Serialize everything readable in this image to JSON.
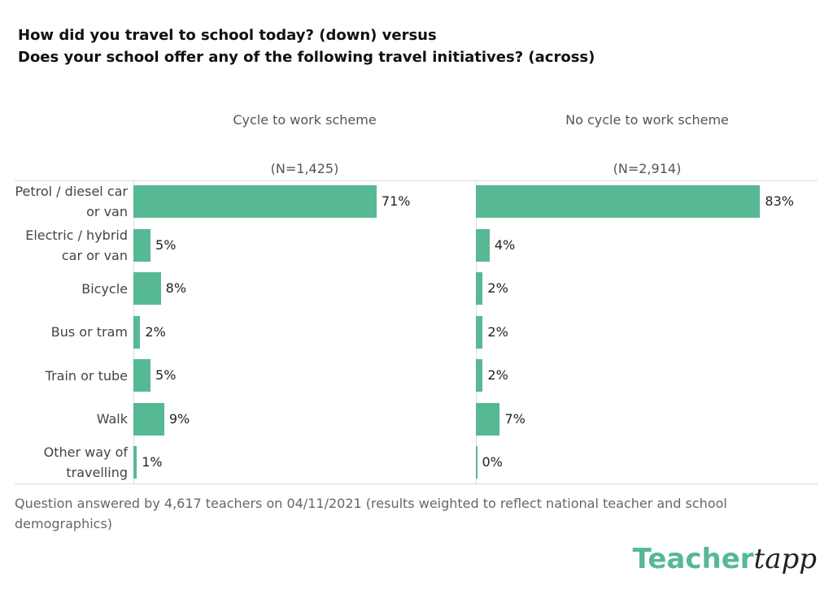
{
  "title": [
    "How did you travel to school today? (down) versus",
    "Does your school offer any of the following travel initiatives? (across)"
  ],
  "categories": [
    "Petrol / diesel car or van",
    "Electric / hybrid car or van",
    "Bicycle",
    "Bus or tram",
    "Train or tube",
    "Walk",
    "Other way of travelling"
  ],
  "chart_data": [
    {
      "type": "bar",
      "orientation": "horizontal",
      "title": "Cycle to work scheme",
      "subtitle": "(N=1,425)",
      "color": "#57b894",
      "values": [
        71,
        5,
        8,
        2,
        5,
        9,
        1
      ],
      "value_labels": [
        "71%",
        "5%",
        "8%",
        "2%",
        "5%",
        "9%",
        "1%"
      ],
      "xlim": [
        0,
        100
      ]
    },
    {
      "type": "bar",
      "orientation": "horizontal",
      "title": "No cycle to work scheme",
      "subtitle": "(N=2,914)",
      "color": "#57b894",
      "values": [
        83,
        4,
        2,
        2,
        2,
        7,
        0
      ],
      "value_labels": [
        "83%",
        "4%",
        "2%",
        "2%",
        "2%",
        "7%",
        "0%"
      ],
      "xlim": [
        0,
        100
      ]
    }
  ],
  "footnote": "Question answered by 4,617 teachers on 04/11/2021 (results weighted to reflect national teacher and school demographics)",
  "logo": [
    "Teacher",
    "tapp"
  ]
}
